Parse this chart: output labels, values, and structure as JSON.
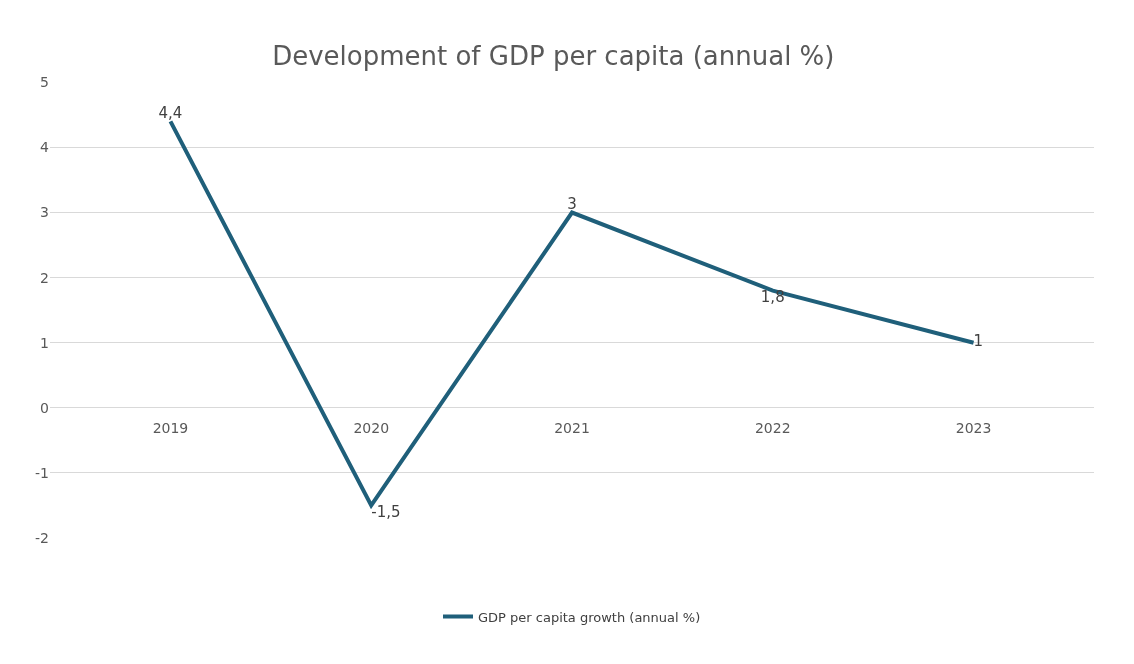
{
  "chart_data": {
    "type": "line",
    "title": "Development of GDP per capita (annual %)",
    "categories": [
      "2019",
      "2020",
      "2021",
      "2022",
      "2023"
    ],
    "series": [
      {
        "name": "GDP per capita growth (annual %)",
        "color": "#1f5f7a",
        "values": [
          4.4,
          -1.5,
          3,
          1.8,
          1
        ],
        "value_labels": [
          "4,4",
          "-1,5",
          "3",
          "1,8",
          "1"
        ]
      }
    ],
    "ylim": [
      -2,
      5
    ],
    "yticks": [
      -2,
      -1,
      0,
      1,
      2,
      3,
      4,
      5
    ],
    "grid": "y",
    "legend": "bottom",
    "marker": "none",
    "line_style": "solid"
  }
}
